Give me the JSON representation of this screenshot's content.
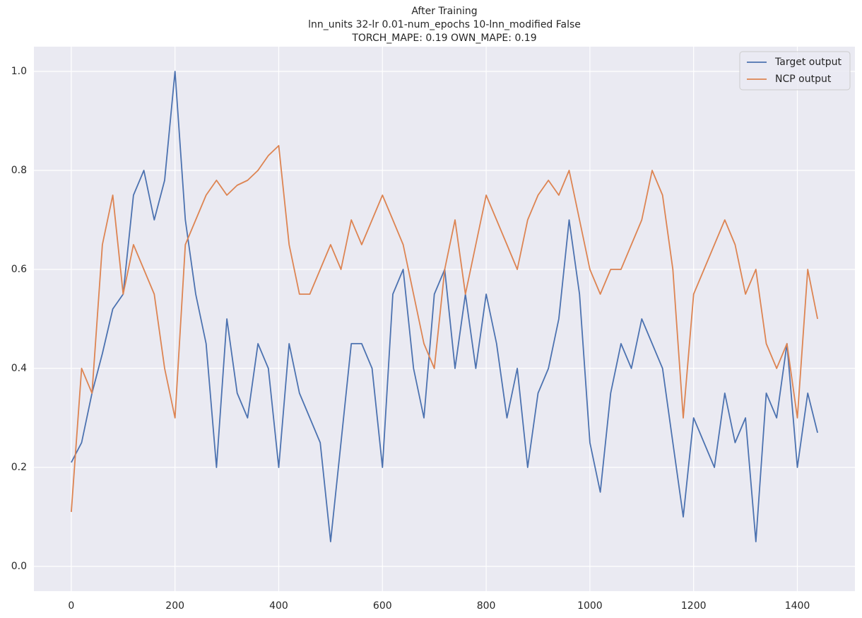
{
  "chart_data": {
    "type": "line",
    "title": "After Training",
    "subtitle": [
      "lnn_units 32-lr 0.01-num_epochs 10-lnn_modified False",
      "TORCH_MAPE: 0.19 OWN_MAPE: 0.19"
    ],
    "x": [
      0,
      20,
      40,
      60,
      80,
      100,
      120,
      140,
      160,
      180,
      200,
      220,
      240,
      260,
      280,
      300,
      320,
      340,
      360,
      380,
      400,
      420,
      440,
      460,
      480,
      500,
      520,
      540,
      560,
      580,
      600,
      620,
      640,
      660,
      680,
      700,
      720,
      740,
      760,
      780,
      800,
      820,
      840,
      860,
      880,
      900,
      920,
      940,
      960,
      980,
      1000,
      1020,
      1040,
      1060,
      1080,
      1100,
      1120,
      1140,
      1160,
      1180,
      1200,
      1220,
      1240,
      1260,
      1280,
      1300,
      1320,
      1340,
      1360,
      1380,
      1400,
      1420,
      1439
    ],
    "series": [
      {
        "name": "Target output",
        "color": "#4c72b0",
        "values": [
          0.21,
          0.25,
          0.35,
          0.43,
          0.52,
          0.55,
          0.75,
          0.8,
          0.7,
          0.78,
          1.0,
          0.7,
          0.55,
          0.45,
          0.2,
          0.5,
          0.35,
          0.3,
          0.45,
          0.4,
          0.2,
          0.45,
          0.35,
          0.3,
          0.25,
          0.05,
          0.25,
          0.45,
          0.45,
          0.4,
          0.2,
          0.55,
          0.6,
          0.4,
          0.3,
          0.55,
          0.6,
          0.4,
          0.55,
          0.4,
          0.55,
          0.45,
          0.3,
          0.4,
          0.2,
          0.35,
          0.4,
          0.5,
          0.7,
          0.55,
          0.25,
          0.15,
          0.35,
          0.45,
          0.4,
          0.5,
          0.45,
          0.4,
          0.25,
          0.1,
          0.3,
          0.25,
          0.2,
          0.35,
          0.25,
          0.3,
          0.05,
          0.35,
          0.3,
          0.45,
          0.2,
          0.35,
          0.27
        ]
      },
      {
        "name": "NCP output",
        "color": "#dd8452",
        "values": [
          0.11,
          0.4,
          0.35,
          0.65,
          0.75,
          0.55,
          0.65,
          0.6,
          0.55,
          0.4,
          0.3,
          0.65,
          0.7,
          0.75,
          0.78,
          0.75,
          0.77,
          0.78,
          0.8,
          0.83,
          0.85,
          0.65,
          0.55,
          0.55,
          0.6,
          0.65,
          0.6,
          0.7,
          0.65,
          0.7,
          0.75,
          0.7,
          0.65,
          0.55,
          0.45,
          0.4,
          0.6,
          0.7,
          0.55,
          0.65,
          0.75,
          0.7,
          0.65,
          0.6,
          0.7,
          0.75,
          0.78,
          0.75,
          0.8,
          0.7,
          0.6,
          0.55,
          0.6,
          0.6,
          0.65,
          0.7,
          0.8,
          0.75,
          0.6,
          0.3,
          0.55,
          0.6,
          0.65,
          0.7,
          0.65,
          0.55,
          0.6,
          0.45,
          0.4,
          0.45,
          0.3,
          0.6,
          0.5
        ]
      }
    ],
    "xlim": [
      -72,
      1511
    ],
    "ylim": [
      -0.05,
      1.05
    ],
    "xticks": [
      0,
      200,
      400,
      600,
      800,
      1000,
      1200,
      1400
    ],
    "yticks": [
      {
        "value": 0,
        "label": "0.0"
      },
      0.2,
      0.4,
      0.6,
      0.8,
      {
        "value": 1,
        "label": "1.0"
      }
    ],
    "grid": true,
    "legend": "upper right"
  }
}
